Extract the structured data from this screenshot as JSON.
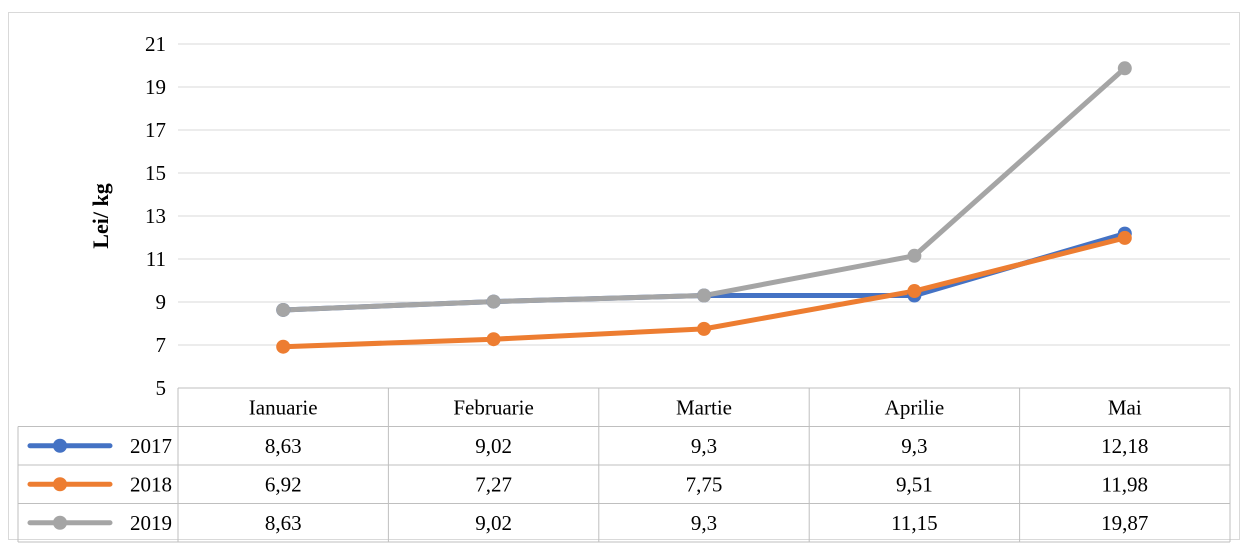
{
  "chart_data": {
    "type": "line",
    "title": "",
    "xlabel": "",
    "ylabel": "Lei/ kg",
    "ylim": [
      5,
      21
    ],
    "yticks": [
      5,
      7,
      9,
      11,
      13,
      15,
      17,
      19,
      21
    ],
    "grid": true,
    "legend": "data-table",
    "categories": [
      "Ianuarie",
      "Februarie",
      "Martie",
      "Aprilie",
      "Mai"
    ],
    "series": [
      {
        "name": "2017",
        "color": "#4472c4",
        "values": [
          8.63,
          9.02,
          9.3,
          9.3,
          12.18
        ],
        "labels": [
          "8,63",
          "9,02",
          "9,3",
          "9,3",
          "12,18"
        ]
      },
      {
        "name": "2018",
        "color": "#ed7d31",
        "values": [
          6.92,
          7.27,
          7.75,
          9.51,
          11.98
        ],
        "labels": [
          "6,92",
          "7,27",
          "7,75",
          "9,51",
          "11,98"
        ]
      },
      {
        "name": "2019",
        "color": "#a5a5a5",
        "values": [
          8.63,
          9.02,
          9.3,
          11.15,
          19.87
        ],
        "labels": [
          "8,63",
          "9,02",
          "9,3",
          "11,15",
          "19,87"
        ]
      }
    ]
  }
}
